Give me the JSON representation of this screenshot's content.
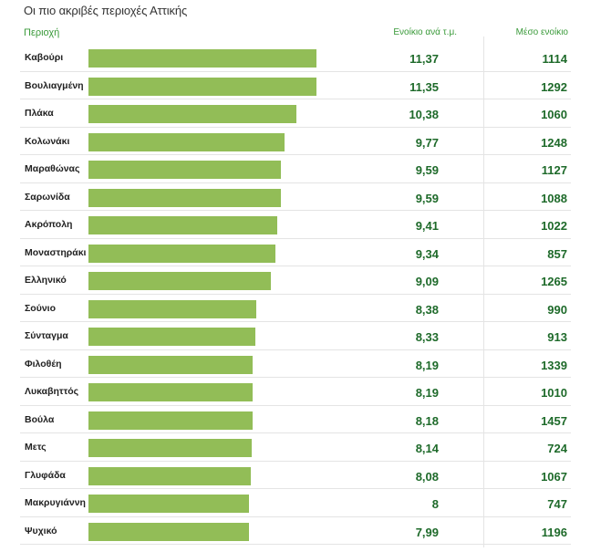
{
  "header": {
    "title": "Οι πιο ακριβές περιοχές Αττικής",
    "col_region": "Περιοχή",
    "col_price": "Ενοίκιο ανά τ.μ.",
    "col_avg": "Μέσο ενοίκιο"
  },
  "colors": {
    "bar": "#92bd57",
    "header": "#3a9a3a",
    "values": "#1e6a2a"
  },
  "chart_data": {
    "type": "bar",
    "orientation": "horizontal",
    "title": "Οι πιο ακριβές περιοχές Αττικής",
    "xlim": [
      0,
      11.37
    ],
    "categories": [
      "Καβούρι",
      "Βουλιαγμένη",
      "Πλάκα",
      "Κολωνάκι",
      "Μαραθώνας",
      "Σαρωνίδα",
      "Ακρόπολη",
      "Μοναστηράκι",
      "Ελληνικό",
      "Σούνιο",
      "Σύνταγμα",
      "Φιλοθέη",
      "Λυκαβηττός",
      "Βούλα",
      "Μετς",
      "Γλυφάδα",
      "Μακρυγιάννη",
      "Ψυχικό"
    ],
    "values": [
      11.37,
      11.35,
      10.38,
      9.77,
      9.59,
      9.59,
      9.41,
      9.34,
      9.09,
      8.38,
      8.33,
      8.19,
      8.19,
      8.18,
      8.14,
      8.08,
      8,
      7.99
    ],
    "value_labels": [
      "11,37",
      "11,35",
      "10,38",
      "9,77",
      "9,59",
      "9,59",
      "9,41",
      "9,34",
      "9,09",
      "8,38",
      "8,33",
      "8,19",
      "8,19",
      "8,18",
      "8,14",
      "8,08",
      "8",
      "7,99"
    ],
    "avg_rent": [
      "1114",
      "1292",
      "1060",
      "1248",
      "1127",
      "1088",
      "1022",
      "857",
      "1265",
      "990",
      "913",
      "1339",
      "1010",
      "1457",
      "724",
      "1067",
      "747",
      "1196"
    ]
  }
}
